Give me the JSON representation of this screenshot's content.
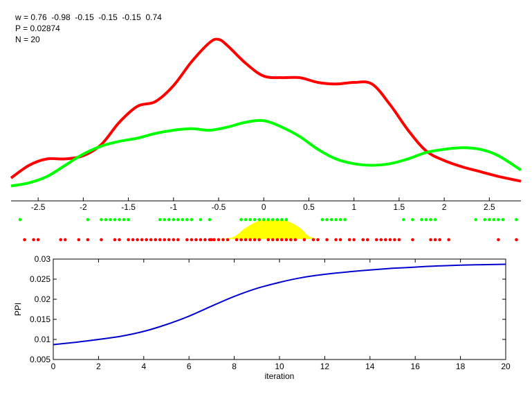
{
  "info": {
    "w_line": "w = 0.76  -0.98  -0.15  -0.15  -0.15  0.74",
    "p_line": "P = 0.02874",
    "n_line": "N = 20"
  },
  "colors": {
    "red": "#ff0000",
    "green": "#00ff00",
    "yellow": "#ffff00",
    "blue": "#0000cc",
    "axis": "#000000"
  },
  "chart_data": [
    {
      "type": "line",
      "grid": false,
      "xlim": [
        -2.8,
        2.85
      ],
      "ylim": [
        0,
        1
      ],
      "x_ticks": [
        -2.5,
        -2,
        -1.5,
        -1,
        -0.5,
        0,
        0.5,
        1,
        1.5,
        2,
        2.5
      ],
      "x_tick_labels": [
        "-2.5",
        "-2",
        "-1.5",
        "-1",
        "-0.5",
        "0",
        "0.5",
        "1",
        "1.5",
        "2",
        "2.5"
      ],
      "series": [
        {
          "color": "red",
          "points": [
            [
              -2.8,
              0.1
            ],
            [
              -2.6,
              0.18
            ],
            [
              -2.4,
              0.22
            ],
            [
              -2.2,
              0.22
            ],
            [
              -2.0,
              0.24
            ],
            [
              -1.8,
              0.31
            ],
            [
              -1.6,
              0.45
            ],
            [
              -1.4,
              0.55
            ],
            [
              -1.2,
              0.58
            ],
            [
              -1.0,
              0.68
            ],
            [
              -0.8,
              0.83
            ],
            [
              -0.6,
              0.95
            ],
            [
              -0.5,
              0.97
            ],
            [
              -0.4,
              0.93
            ],
            [
              -0.2,
              0.82
            ],
            [
              0.0,
              0.74
            ],
            [
              0.2,
              0.73
            ],
            [
              0.4,
              0.73
            ],
            [
              0.6,
              0.7
            ],
            [
              0.8,
              0.69
            ],
            [
              1.0,
              0.7
            ],
            [
              1.2,
              0.69
            ],
            [
              1.4,
              0.56
            ],
            [
              1.6,
              0.4
            ],
            [
              1.8,
              0.27
            ],
            [
              2.0,
              0.21
            ],
            [
              2.2,
              0.17
            ],
            [
              2.4,
              0.14
            ],
            [
              2.6,
              0.11
            ],
            [
              2.85,
              0.08
            ]
          ]
        },
        {
          "color": "green",
          "points": [
            [
              -2.8,
              0.05
            ],
            [
              -2.6,
              0.07
            ],
            [
              -2.4,
              0.11
            ],
            [
              -2.2,
              0.18
            ],
            [
              -2.0,
              0.25
            ],
            [
              -1.8,
              0.3
            ],
            [
              -1.6,
              0.33
            ],
            [
              -1.4,
              0.35
            ],
            [
              -1.2,
              0.38
            ],
            [
              -1.0,
              0.4
            ],
            [
              -0.8,
              0.41
            ],
            [
              -0.6,
              0.4
            ],
            [
              -0.4,
              0.42
            ],
            [
              -0.2,
              0.45
            ],
            [
              0.0,
              0.46
            ],
            [
              0.2,
              0.42
            ],
            [
              0.4,
              0.36
            ],
            [
              0.6,
              0.28
            ],
            [
              0.8,
              0.22
            ],
            [
              1.0,
              0.19
            ],
            [
              1.2,
              0.18
            ],
            [
              1.4,
              0.19
            ],
            [
              1.6,
              0.22
            ],
            [
              1.8,
              0.26
            ],
            [
              2.0,
              0.28
            ],
            [
              2.2,
              0.29
            ],
            [
              2.4,
              0.28
            ],
            [
              2.6,
              0.24
            ],
            [
              2.85,
              0.15
            ]
          ]
        }
      ],
      "highlight_area": {
        "color": "yellow",
        "points": [
          [
            -0.58,
            0
          ],
          [
            -0.35,
            0.08
          ],
          [
            -0.2,
            0.6
          ],
          [
            -0.05,
            0.97
          ],
          [
            0.1,
            1
          ],
          [
            0.25,
            0.97
          ],
          [
            0.4,
            0.6
          ],
          [
            0.5,
            0.15
          ],
          [
            0.6,
            0
          ]
        ]
      },
      "green_markers": [
        -2.7,
        -1.95,
        -1.8,
        -1.75,
        -1.7,
        -1.65,
        -1.6,
        -1.55,
        -1.5,
        -1.15,
        -1.1,
        -1.05,
        -1.0,
        -0.95,
        -0.9,
        -0.85,
        -0.8,
        -0.7,
        -0.6,
        -0.25,
        -0.2,
        -0.15,
        -0.1,
        -0.05,
        0.0,
        0.05,
        0.1,
        0.15,
        0.2,
        0.25,
        0.65,
        0.7,
        0.75,
        0.8,
        0.85,
        0.9,
        1.55,
        1.65,
        1.75,
        1.8,
        1.85,
        1.9,
        2.35,
        2.45,
        2.5,
        2.55,
        2.6,
        2.65,
        2.8
      ],
      "red_markers": [
        -2.65,
        -2.55,
        -2.5,
        -2.25,
        -2.2,
        -2.05,
        -1.95,
        -1.8,
        -1.65,
        -1.6,
        -1.5,
        -1.45,
        -1.4,
        -1.35,
        -1.3,
        -1.25,
        -1.2,
        -1.15,
        -1.1,
        -1.05,
        -1.0,
        -0.95,
        -0.85,
        -0.8,
        -0.75,
        -0.7,
        -0.65,
        -0.6,
        -0.58,
        -0.55,
        -0.5,
        -0.45,
        -0.4,
        -0.3,
        -0.25,
        -0.2,
        -0.15,
        -0.1,
        -0.05,
        0.05,
        0.1,
        0.15,
        0.2,
        0.25,
        0.3,
        0.35,
        0.45,
        0.55,
        0.6,
        0.7,
        0.8,
        0.85,
        0.95,
        1.0,
        1.1,
        1.15,
        1.25,
        1.3,
        1.35,
        1.4,
        1.45,
        1.5,
        1.65,
        1.85,
        1.9,
        1.95,
        2.05,
        2.6,
        2.8
      ]
    },
    {
      "type": "line",
      "grid": false,
      "xlabel": "iteration",
      "ylabel": "PPI",
      "xlim": [
        0,
        20
      ],
      "ylim": [
        0.005,
        0.03
      ],
      "x_ticks": [
        0,
        2,
        4,
        6,
        8,
        10,
        12,
        14,
        16,
        18,
        20
      ],
      "x_tick_labels": [
        "0",
        "2",
        "4",
        "6",
        "8",
        "10",
        "12",
        "14",
        "16",
        "18",
        "20"
      ],
      "y_ticks": [
        0.005,
        0.01,
        0.015,
        0.02,
        0.025,
        0.03
      ],
      "y_tick_labels": [
        "0.005",
        "0.01",
        "0.015",
        "0.02",
        "0.025",
        "0.03"
      ],
      "series": [
        {
          "color": "blue",
          "x": [
            0,
            1,
            2,
            3,
            4,
            5,
            6,
            7,
            8,
            9,
            10,
            11,
            12,
            13,
            14,
            15,
            16,
            17,
            18,
            19,
            20
          ],
          "y": [
            0.0087,
            0.0093,
            0.01,
            0.0108,
            0.012,
            0.0137,
            0.0158,
            0.0183,
            0.0207,
            0.0227,
            0.0242,
            0.0254,
            0.0262,
            0.0268,
            0.0273,
            0.0277,
            0.028,
            0.0283,
            0.0285,
            0.0286,
            0.0287
          ]
        }
      ]
    }
  ]
}
